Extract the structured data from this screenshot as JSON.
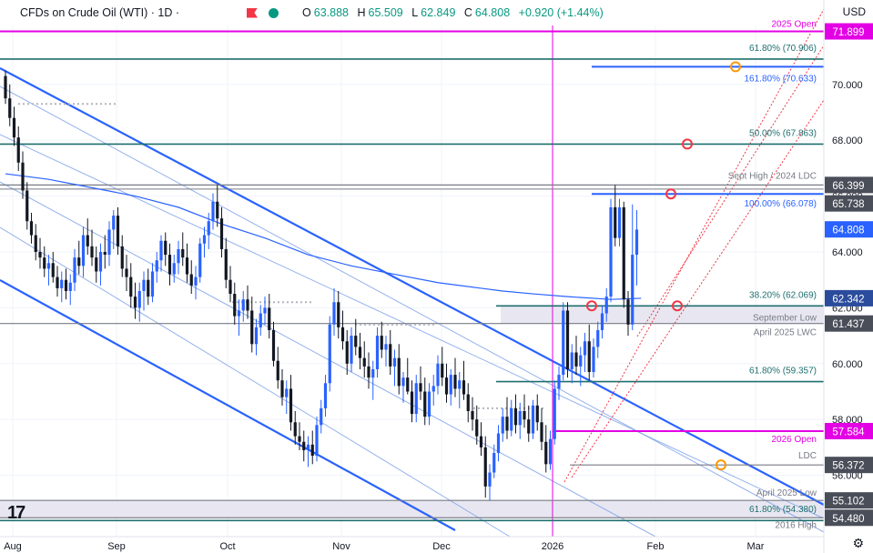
{
  "header": {
    "title": "CFDs on Crude Oil (WTI) · 1D ·",
    "open_label": "O",
    "open": "63.888",
    "high_label": "H",
    "high": "65.509",
    "low_label": "L",
    "low": "62.849",
    "close_label": "C",
    "close": "64.808",
    "change": "+0.920 (+1.44%)",
    "currency": "USD"
  },
  "colors": {
    "up": "#2962ff",
    "down": "#131722",
    "magenta": "#e400e4",
    "teal": "#1f6e6e",
    "gray": "#787b86",
    "blue_fib": "#2962ff",
    "channel": "#2962ff",
    "ma": "#2962ff",
    "red_dotted": "#f23645",
    "orange_circle": "#ff9800",
    "red_circle": "#f23645"
  },
  "chart_data": {
    "type": "candlestick",
    "symbol": "CFDs on Crude Oil (WTI)",
    "timeframe": "1D",
    "x_axis_labels": [
      "Aug",
      "Sep",
      "Oct",
      "Nov",
      "Dec",
      "2026",
      "Feb",
      "Mar"
    ],
    "y_ticks": [
      56.0,
      58.0,
      60.0,
      62.0,
      64.0,
      66.0,
      68.0,
      70.0
    ],
    "ylim": [
      54.0,
      73.0
    ],
    "price_levels": [
      {
        "label": "2025 Open",
        "value": 71.899,
        "axis_tag": "71.899",
        "kind": "magenta"
      },
      {
        "label": "61.80% (70.906)",
        "value": 70.906,
        "kind": "teal"
      },
      {
        "label": "161.80% (70.633)",
        "value": 70.633,
        "kind": "fib_blue"
      },
      {
        "label": "50.00% (67.863)",
        "value": 67.863,
        "kind": "teal"
      },
      {
        "label": "Sept High / 2024 LDC",
        "value": 66.399,
        "axis_tag": "66.399",
        "kind": "gray"
      },
      {
        "label": "100.00% (66.078)",
        "value": 66.078,
        "kind": "fib_blue"
      },
      {
        "label": "38.20% (62.069)",
        "value": 62.069,
        "kind": "teal"
      },
      {
        "label": "September Low",
        "value": 62.069,
        "kind": "zone_top"
      },
      {
        "label": "April 2025 LWC",
        "value": 61.437,
        "axis_tag": "61.437",
        "kind": "gray"
      },
      {
        "label": "61.80% (59.357)",
        "value": 59.357,
        "kind": "teal"
      },
      {
        "label": "2026 Open",
        "value": 57.584,
        "axis_tag": "57.584",
        "kind": "magenta"
      },
      {
        "label": "LDC",
        "value": 56.372,
        "axis_tag": "56.372",
        "kind": "gray"
      },
      {
        "label": "April 2025 Low",
        "value": 55.102,
        "axis_tag": "55.102",
        "kind": "gray"
      },
      {
        "label": "61.80% (54.380)",
        "value": 54.38,
        "kind": "teal"
      },
      {
        "label": "2016 High",
        "value": 54.48,
        "axis_tag": "54.480",
        "kind": "gray"
      }
    ],
    "axis_tags_extra": [
      {
        "value": 65.738,
        "label": "65.738",
        "kind": "gray"
      },
      {
        "value": 64.808,
        "label": "64.808",
        "kind": "last"
      },
      {
        "value": 62.342,
        "label": "62.342",
        "kind": "ma"
      }
    ],
    "candles": [
      [
        70.3,
        70.5,
        69.3,
        69.5
      ],
      [
        69.5,
        70.0,
        68.5,
        68.8
      ],
      [
        68.8,
        69.2,
        67.8,
        68.1
      ],
      [
        68.1,
        68.5,
        66.9,
        67.2
      ],
      [
        67.2,
        67.6,
        65.9,
        66.2
      ],
      [
        66.2,
        66.5,
        64.8,
        65.1
      ],
      [
        65.1,
        65.4,
        64.3,
        64.6
      ],
      [
        64.6,
        65.0,
        63.7,
        64.0
      ],
      [
        64.0,
        64.5,
        63.4,
        63.8
      ],
      [
        63.8,
        64.2,
        63.1,
        63.4
      ],
      [
        63.4,
        63.9,
        62.8,
        63.6
      ],
      [
        63.6,
        64.0,
        62.9,
        63.1
      ],
      [
        63.1,
        63.5,
        62.4,
        62.7
      ],
      [
        62.7,
        63.3,
        62.2,
        63.0
      ],
      [
        63.0,
        63.4,
        62.3,
        62.6
      ],
      [
        62.6,
        63.2,
        62.1,
        62.9
      ],
      [
        62.9,
        64.1,
        62.6,
        63.8
      ],
      [
        63.8,
        64.4,
        63.2,
        63.5
      ],
      [
        63.5,
        64.9,
        63.1,
        64.6
      ],
      [
        64.6,
        65.2,
        63.9,
        64.2
      ],
      [
        64.2,
        64.8,
        63.5,
        63.8
      ],
      [
        63.8,
        64.2,
        62.9,
        63.3
      ],
      [
        63.3,
        64.3,
        62.8,
        64.0
      ],
      [
        64.0,
        64.6,
        63.4,
        63.9
      ],
      [
        63.9,
        65.1,
        63.5,
        64.8
      ],
      [
        64.8,
        65.5,
        64.1,
        65.3
      ],
      [
        65.3,
        65.6,
        63.9,
        64.2
      ],
      [
        64.2,
        64.6,
        63.1,
        63.4
      ],
      [
        63.4,
        63.9,
        62.6,
        63.1
      ],
      [
        63.1,
        63.6,
        62.0,
        62.4
      ],
      [
        62.4,
        62.9,
        61.6,
        62.0
      ],
      [
        62.0,
        62.9,
        61.5,
        62.6
      ],
      [
        62.6,
        63.3,
        61.9,
        63.0
      ],
      [
        63.0,
        63.4,
        62.1,
        62.4
      ],
      [
        62.4,
        63.6,
        62.2,
        63.3
      ],
      [
        63.3,
        64.0,
        62.9,
        63.7
      ],
      [
        63.7,
        64.6,
        63.3,
        64.4
      ],
      [
        64.4,
        64.7,
        63.5,
        63.9
      ],
      [
        63.9,
        64.3,
        62.8,
        63.2
      ],
      [
        63.2,
        63.9,
        62.9,
        63.6
      ],
      [
        63.6,
        64.4,
        63.2,
        64.1
      ],
      [
        64.1,
        64.7,
        63.5,
        63.8
      ],
      [
        63.8,
        64.3,
        62.9,
        63.2
      ],
      [
        63.2,
        63.7,
        62.5,
        62.8
      ],
      [
        62.8,
        63.5,
        62.3,
        63.1
      ],
      [
        63.1,
        64.5,
        62.9,
        64.3
      ],
      [
        64.3,
        64.9,
        63.8,
        64.6
      ],
      [
        64.6,
        65.4,
        64.1,
        65.1
      ],
      [
        65.1,
        66.1,
        64.8,
        65.8
      ],
      [
        65.8,
        66.4,
        64.9,
        65.2
      ],
      [
        65.2,
        65.6,
        63.8,
        64.1
      ],
      [
        64.1,
        64.5,
        62.7,
        63.0
      ],
      [
        63.0,
        63.5,
        62.2,
        62.5
      ],
      [
        62.5,
        62.9,
        61.4,
        61.7
      ],
      [
        61.7,
        62.3,
        61.0,
        61.9
      ],
      [
        61.9,
        62.6,
        61.5,
        62.3
      ],
      [
        62.3,
        62.8,
        61.6,
        61.9
      ],
      [
        61.9,
        62.4,
        60.4,
        60.7
      ],
      [
        60.7,
        61.6,
        60.3,
        61.3
      ],
      [
        61.3,
        62.1,
        61.0,
        61.8
      ],
      [
        61.8,
        62.4,
        61.4,
        62.0
      ],
      [
        62.0,
        62.5,
        60.9,
        61.2
      ],
      [
        61.2,
        61.5,
        59.9,
        60.1
      ],
      [
        60.1,
        60.6,
        59.1,
        59.4
      ],
      [
        59.4,
        59.8,
        58.5,
        58.8
      ],
      [
        58.8,
        59.4,
        58.2,
        59.1
      ],
      [
        59.1,
        59.6,
        57.6,
        57.9
      ],
      [
        57.9,
        58.3,
        57.1,
        57.4
      ],
      [
        57.4,
        57.9,
        56.9,
        57.2
      ],
      [
        57.2,
        57.6,
        56.5,
        56.9
      ],
      [
        56.9,
        57.4,
        56.3,
        57.1
      ],
      [
        57.1,
        57.6,
        56.4,
        56.7
      ],
      [
        56.7,
        58.1,
        56.5,
        57.8
      ],
      [
        57.8,
        58.7,
        57.5,
        58.4
      ],
      [
        58.4,
        59.6,
        58.1,
        59.3
      ],
      [
        59.3,
        61.7,
        59.0,
        61.4
      ],
      [
        61.4,
        62.7,
        61.0,
        62.2
      ],
      [
        62.2,
        62.6,
        60.9,
        61.3
      ],
      [
        61.3,
        61.9,
        60.5,
        60.8
      ],
      [
        60.8,
        61.2,
        59.6,
        60.0
      ],
      [
        60.0,
        61.3,
        59.7,
        61.0
      ],
      [
        61.0,
        61.6,
        60.3,
        60.6
      ],
      [
        60.6,
        61.1,
        59.8,
        60.2
      ],
      [
        60.2,
        60.8,
        59.5,
        59.9
      ],
      [
        59.9,
        60.4,
        59.1,
        59.5
      ],
      [
        59.5,
        60.1,
        58.7,
        59.8
      ],
      [
        59.8,
        61.3,
        59.5,
        61.0
      ],
      [
        61.0,
        61.5,
        60.2,
        60.5
      ],
      [
        60.5,
        61.0,
        59.9,
        60.7
      ],
      [
        60.7,
        61.2,
        59.6,
        59.9
      ],
      [
        59.9,
        60.5,
        59.2,
        60.2
      ],
      [
        60.2,
        60.7,
        58.9,
        59.2
      ],
      [
        59.2,
        59.7,
        58.6,
        59.5
      ],
      [
        59.5,
        60.2,
        58.9,
        59.0
      ],
      [
        59.0,
        59.4,
        57.9,
        58.2
      ],
      [
        58.2,
        59.6,
        57.9,
        59.3
      ],
      [
        59.3,
        59.9,
        58.7,
        59.0
      ],
      [
        59.0,
        59.5,
        57.8,
        58.1
      ],
      [
        58.1,
        59.3,
        57.8,
        59.0
      ],
      [
        59.0,
        59.6,
        58.5,
        59.2
      ],
      [
        59.2,
        60.3,
        58.9,
        60.0
      ],
      [
        60.0,
        60.6,
        59.2,
        59.5
      ],
      [
        59.5,
        60.0,
        58.6,
        58.9
      ],
      [
        58.9,
        59.8,
        58.5,
        59.6
      ],
      [
        59.6,
        60.2,
        58.8,
        59.1
      ],
      [
        59.1,
        59.7,
        58.4,
        59.4
      ],
      [
        59.4,
        60.1,
        58.7,
        58.9
      ],
      [
        58.9,
        59.3,
        57.9,
        58.3
      ],
      [
        58.3,
        58.8,
        57.6,
        58.0
      ],
      [
        58.0,
        58.5,
        57.1,
        57.4
      ],
      [
        57.4,
        57.9,
        56.7,
        57.0
      ],
      [
        57.0,
        57.4,
        55.2,
        55.6
      ],
      [
        55.6,
        56.4,
        55.1,
        56.1
      ],
      [
        56.1,
        57.1,
        55.9,
        56.8
      ],
      [
        56.8,
        57.8,
        56.5,
        57.5
      ],
      [
        57.5,
        58.4,
        57.2,
        58.1
      ],
      [
        58.1,
        58.8,
        57.3,
        57.6
      ],
      [
        57.6,
        58.7,
        57.4,
        58.4
      ],
      [
        58.4,
        58.9,
        57.5,
        57.8
      ],
      [
        57.8,
        58.6,
        57.3,
        58.3
      ],
      [
        58.3,
        58.9,
        57.7,
        58.0
      ],
      [
        58.0,
        58.5,
        57.2,
        57.5
      ],
      [
        57.5,
        58.7,
        57.3,
        58.5
      ],
      [
        58.5,
        58.9,
        57.6,
        57.9
      ],
      [
        57.9,
        58.4,
        56.9,
        57.2
      ],
      [
        57.2,
        57.8,
        56.1,
        56.4
      ],
      [
        56.4,
        57.6,
        56.2,
        57.3
      ],
      [
        57.3,
        59.4,
        57.1,
        59.1
      ],
      [
        59.1,
        59.9,
        58.7,
        59.6
      ],
      [
        59.6,
        62.2,
        59.4,
        61.9
      ],
      [
        61.9,
        62.2,
        59.5,
        59.8
      ],
      [
        59.8,
        60.7,
        59.3,
        60.4
      ],
      [
        60.4,
        61.0,
        59.6,
        59.9
      ],
      [
        59.9,
        60.6,
        59.2,
        60.3
      ],
      [
        60.3,
        61.1,
        59.7,
        60.8
      ],
      [
        60.8,
        61.4,
        59.4,
        59.7
      ],
      [
        59.7,
        60.9,
        59.5,
        60.6
      ],
      [
        60.6,
        61.5,
        60.2,
        61.2
      ],
      [
        61.2,
        62.1,
        60.9,
        61.8
      ],
      [
        61.8,
        62.7,
        61.5,
        62.4
      ],
      [
        62.4,
        65.9,
        62.2,
        65.6
      ],
      [
        65.6,
        66.4,
        64.2,
        64.5
      ],
      [
        64.5,
        65.9,
        64.2,
        65.6
      ],
      [
        65.6,
        65.8,
        62.0,
        62.3
      ],
      [
        62.3,
        62.6,
        61.0,
        61.4
      ],
      [
        61.4,
        65.7,
        61.2,
        63.9
      ],
      [
        63.9,
        65.5,
        62.8,
        64.8
      ]
    ],
    "moving_average": [
      [
        0,
        66.8
      ],
      [
        10,
        66.6
      ],
      [
        20,
        66.3
      ],
      [
        30,
        66.0
      ],
      [
        40,
        65.6
      ],
      [
        50,
        65.0
      ],
      [
        60,
        64.5
      ],
      [
        70,
        63.9
      ],
      [
        80,
        63.5
      ],
      [
        90,
        63.2
      ],
      [
        100,
        62.9
      ],
      [
        110,
        62.7
      ],
      [
        115,
        62.6
      ],
      [
        122,
        62.5
      ],
      [
        130,
        62.4
      ],
      [
        140,
        62.3
      ],
      [
        147,
        62.34
      ]
    ]
  }
}
